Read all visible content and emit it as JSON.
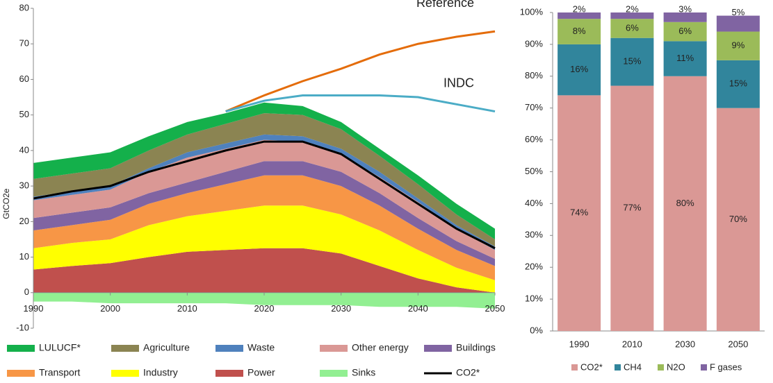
{
  "chart_data": [
    {
      "type": "area",
      "stacked": true,
      "y_label": "GtCO2e",
      "x": [
        1990,
        1995,
        2000,
        2005,
        2010,
        2015,
        2020,
        2025,
        2030,
        2035,
        2040,
        2045,
        2050
      ],
      "xlim": [
        1990,
        2050
      ],
      "xticks": [
        1990,
        2000,
        2010,
        2020,
        2030,
        2040,
        2050
      ],
      "ylim": [
        -10,
        80
      ],
      "yticks": [
        -10,
        0,
        10,
        20,
        30,
        40,
        50,
        60,
        70,
        80
      ],
      "series": [
        {
          "name": "LULUCF*",
          "color": "#14b04b",
          "values": [
            4.5,
            4.5,
            4.5,
            4,
            3.5,
            3,
            3,
            2.5,
            2,
            2,
            2.5,
            3,
            3
          ]
        },
        {
          "name": "Agriculture",
          "color": "#8b8452",
          "values": [
            5,
            5,
            5,
            5,
            5,
            5.5,
            6,
            6,
            5.5,
            4.5,
            4,
            3,
            2
          ]
        },
        {
          "name": "Waste",
          "color": "#4f81bd",
          "values": [
            1,
            1,
            1,
            1,
            1.5,
            1.5,
            1.5,
            1.5,
            1.5,
            1.5,
            1,
            1,
            1
          ]
        },
        {
          "name": "Other energy",
          "color": "#da9895",
          "values": [
            5,
            5,
            5,
            6,
            7,
            6.5,
            6,
            5.5,
            5,
            4.5,
            4.5,
            3.5,
            2.5
          ]
        },
        {
          "name": "Buildings",
          "color": "#8064a2",
          "values": [
            3.5,
            3.5,
            3.5,
            3,
            3,
            3.5,
            4,
            4,
            4,
            3.5,
            3,
            2.5,
            2
          ]
        },
        {
          "name": "Transport",
          "color": "#f79646",
          "values": [
            5,
            5,
            5.5,
            6,
            6.5,
            7.5,
            8.5,
            8.5,
            8,
            7,
            6,
            5,
            4
          ]
        },
        {
          "name": "Industry",
          "color": "#ffff00",
          "values": [
            6,
            6.5,
            6.7,
            9,
            10,
            11,
            12,
            12,
            11,
            10,
            8,
            5.5,
            3.5
          ]
        },
        {
          "name": "Power",
          "color": "#c0504d",
          "values": [
            6.5,
            7.5,
            8.3,
            10,
            11.5,
            12,
            12.5,
            12.5,
            11,
            7.5,
            4,
            1.5,
            0
          ]
        },
        {
          "name": "Sinks",
          "color": "#92ef92",
          "values": [
            -2.5,
            -2.5,
            -3,
            -3,
            -3,
            -3,
            -3.5,
            -3.5,
            -3.5,
            -4,
            -4,
            -4,
            -4.5
          ]
        },
        {
          "name": "CO2*",
          "color": "#000000",
          "type": "line",
          "values": [
            26.5,
            28.5,
            30,
            34,
            37,
            40,
            42.5,
            42.5,
            39,
            32,
            25,
            18,
            12.5
          ]
        }
      ],
      "lines": [
        {
          "name": "Reference",
          "color": "#e46c0a",
          "values": [
            null,
            null,
            null,
            null,
            null,
            51,
            55.5,
            59.5,
            63,
            67,
            70,
            72,
            73.5
          ]
        },
        {
          "name": "INDC",
          "color": "#4bacc6",
          "values": [
            null,
            null,
            null,
            null,
            null,
            51,
            54,
            55.5,
            55.5,
            55.5,
            55,
            53,
            51
          ]
        }
      ]
    },
    {
      "type": "bar",
      "stacked": true,
      "categories": [
        "1990",
        "2010",
        "2030",
        "2050"
      ],
      "ylim": [
        0,
        100
      ],
      "yticks": [
        {
          "value": 0,
          "label": "0%"
        },
        {
          "value": 10,
          "label": "10%"
        },
        {
          "value": 20,
          "label": "20%"
        },
        {
          "value": 30,
          "label": "30%"
        },
        {
          "value": 40,
          "label": "40%"
        },
        {
          "value": 50,
          "label": "50%"
        },
        {
          "value": 60,
          "label": "60%"
        },
        {
          "value": 70,
          "label": "70%"
        },
        {
          "value": 80,
          "label": "80%"
        },
        {
          "value": 90,
          "label": "90%"
        },
        {
          "value": 100,
          "label": "100%"
        }
      ],
      "series": [
        {
          "name": "CO2*",
          "color": "#da9895",
          "values": [
            74,
            77,
            80,
            70
          ],
          "value_labels": [
            "74%",
            "77%",
            "80%",
            "70%"
          ]
        },
        {
          "name": "CH4",
          "color": "#31859c",
          "values": [
            16,
            15,
            11,
            15
          ],
          "value_labels": [
            "16%",
            "15%",
            "11%",
            "15%"
          ]
        },
        {
          "name": "N2O",
          "color": "#9bbb59",
          "values": [
            8,
            6,
            6,
            9
          ],
          "value_labels": [
            "8%",
            "6%",
            "6%",
            "9%"
          ]
        },
        {
          "name": "F gases",
          "color": "#8064a2",
          "values": [
            2,
            2,
            3,
            5
          ],
          "value_labels": [
            "2%",
            "2%",
            "3%",
            "5%"
          ]
        }
      ]
    }
  ]
}
